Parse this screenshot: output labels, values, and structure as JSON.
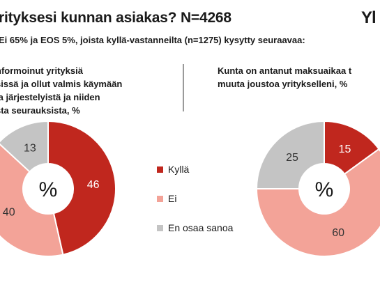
{
  "header": {
    "title": "rityksesi kunnan asiakas? N=4268",
    "logo": "Yl",
    "subtitle": "Ei 65% ja EOS 5%, joista kyllä-vastanneilta (n=1275) kysytty seuraavaa:"
  },
  "questions": {
    "left": [
      "nformoinut yrityksiä",
      "sissä ja ollut valmis käymään",
      "ja järjestelyistä ja niiden",
      "sta seurauksista, %"
    ],
    "right": [
      "Kunta on antanut maksuaikaa t",
      "muuta joustoa yritykselleni, %"
    ]
  },
  "chart_data": [
    {
      "type": "pie",
      "categories": [
        "Kyllä",
        "Ei",
        "En osaa sanoa"
      ],
      "values": [
        46,
        40,
        13
      ],
      "center_label": "%",
      "colors": [
        "#c0271e",
        "#f3a398",
        "#c4c4c4"
      ],
      "legend_position": "right"
    },
    {
      "type": "pie",
      "categories": [
        "Kyllä",
        "Ei",
        "En osaa sanoa"
      ],
      "values": [
        15,
        60,
        25
      ],
      "center_label": "%",
      "colors": [
        "#c0271e",
        "#f3a398",
        "#c4c4c4"
      ],
      "legend_position": "left"
    }
  ],
  "legend": {
    "items": [
      {
        "label": "Kyllä",
        "color": "#c0271e"
      },
      {
        "label": "Ei",
        "color": "#f3a398"
      },
      {
        "label": "En osaa sanoa",
        "color": "#c4c4c4"
      }
    ]
  }
}
